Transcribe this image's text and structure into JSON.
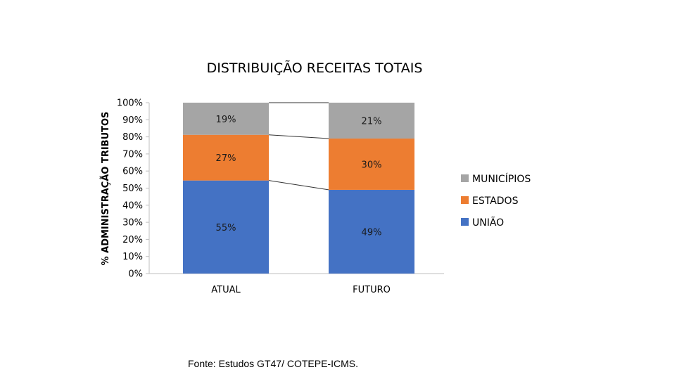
{
  "chart_data": {
    "type": "bar",
    "stacked": true,
    "title": "DISTRIBUIÇÃO RECEITAS TOTAIS",
    "xlabel": "",
    "ylabel": "% ADMINISTRAÇÃO TRIBUTOS",
    "categories": [
      "ATUAL",
      "FUTURO"
    ],
    "ylim": [
      0,
      100
    ],
    "yticks": [
      "0%",
      "10%",
      "20%",
      "30%",
      "40%",
      "50%",
      "60%",
      "70%",
      "80%",
      "90%",
      "100%"
    ],
    "series": [
      {
        "name": "UNIÃO",
        "values": [
          55,
          49
        ],
        "labels": [
          "55%",
          "49%"
        ],
        "color": "#4472C4"
      },
      {
        "name": "ESTADOS",
        "values": [
          27,
          30
        ],
        "labels": [
          "27%",
          "30%"
        ],
        "color": "#ED7D31"
      },
      {
        "name": "MUNICÍPIOS",
        "values": [
          19,
          21
        ],
        "labels": [
          "19%",
          "21%"
        ],
        "color": "#A5A5A5"
      }
    ],
    "legend_order": [
      "MUNICÍPIOS",
      "ESTADOS",
      "UNIÃO"
    ],
    "legend_position": "right",
    "series_lines": true,
    "grid": false
  },
  "source_note": "Fonte: Estudos GT47/ COTEPE-ICMS."
}
